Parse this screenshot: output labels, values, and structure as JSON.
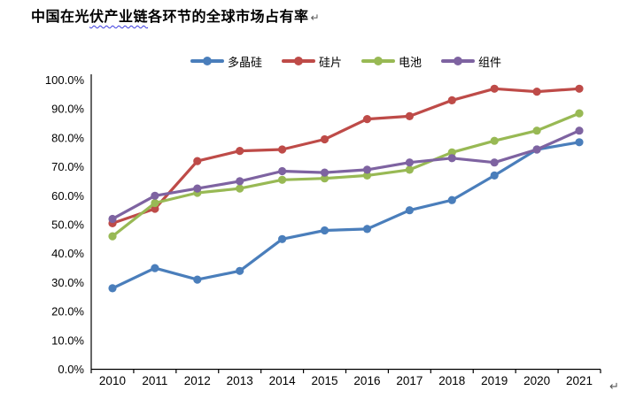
{
  "document": {
    "title": {
      "pre": "中国在光",
      "misspelled": "伏产业链",
      "post": "各环节的全球市场占有率"
    },
    "paragraph_mark": "↵"
  },
  "chart_data": {
    "type": "line",
    "title": "中国在光伏产业链各环节的全球市场占有率",
    "categories": [
      "2010",
      "2011",
      "2012",
      "2013",
      "2014",
      "2015",
      "2016",
      "2017",
      "2018",
      "2019",
      "2020",
      "2021"
    ],
    "series": [
      {
        "name": "多晶硅",
        "color": "#4A7EBB",
        "values": [
          28,
          35,
          31,
          34,
          45,
          48,
          48.5,
          55,
          58.5,
          67,
          76,
          78.5
        ]
      },
      {
        "name": "硅片",
        "color": "#BE4B48",
        "values": [
          50.5,
          55.5,
          72,
          75.5,
          76,
          79.5,
          86.5,
          87.5,
          93,
          97,
          96,
          97
        ]
      },
      {
        "name": "电池",
        "color": "#98B954",
        "values": [
          46,
          57.5,
          61,
          62.5,
          65.5,
          66,
          67,
          69,
          75,
          79,
          82.5,
          88.5
        ]
      },
      {
        "name": "组件",
        "color": "#7E63A1",
        "values": [
          52,
          60,
          62.5,
          65,
          68.5,
          68,
          69,
          71.5,
          73,
          71.5,
          76,
          82.5
        ]
      }
    ],
    "ylim": [
      0,
      100
    ],
    "ytick_labels": [
      "0.0%",
      "10.0%",
      "20.0%",
      "30.0%",
      "40.0%",
      "50.0%",
      "60.0%",
      "70.0%",
      "80.0%",
      "90.0%",
      "100.0%"
    ],
    "xlabel": "",
    "ylabel": "",
    "legend_position": "top",
    "grid": false,
    "axis_color": "#000000"
  }
}
